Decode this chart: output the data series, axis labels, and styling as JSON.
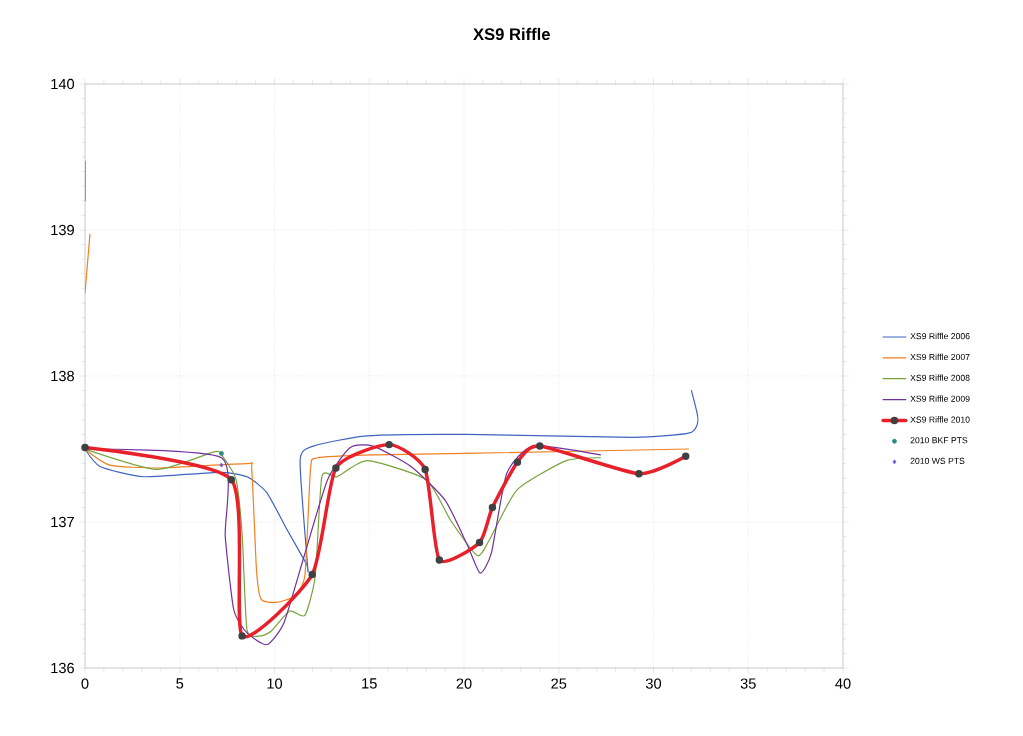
{
  "chart_data": {
    "type": "line",
    "title": "XS9 Riffle",
    "xlim": [
      0,
      40
    ],
    "xticks": [
      0,
      5,
      10,
      15,
      20,
      25,
      30,
      35,
      40
    ],
    "ylim": [
      136,
      140
    ],
    "yticks": [
      136,
      137,
      138,
      139,
      140
    ],
    "grid": true,
    "legend": "right",
    "series": [
      {
        "name": "XS9 Riffle 2006",
        "color": "#3f63c0",
        "marker": "none",
        "x": [
          0,
          0,
          null,
          0,
          0.8,
          3.1,
          7.1,
          8.55,
          9.6,
          10.65,
          11.7,
          11.75,
          11.35,
          12.05,
          14.9,
          20.1,
          28.9,
          31.9,
          32.35,
          32.0
        ],
        "values": [
          139.47,
          139.2,
          null,
          137.5,
          137.38,
          137.31,
          137.34,
          137.31,
          137.2,
          136.95,
          136.71,
          136.69,
          137.42,
          137.52,
          137.59,
          137.6,
          137.58,
          137.61,
          137.7,
          137.9
        ]
      },
      {
        "name": "XS9 Riffle 2007",
        "color": "#f07f20",
        "marker": "none",
        "x": [
          0.26,
          0,
          null,
          0,
          1.3,
          4.0,
          8.55,
          8.8,
          9.05,
          9.3,
          10.1,
          11.0,
          11.6,
          11.9,
          12.25,
          15.4,
          20.1,
          31.85
        ],
        "values": [
          138.97,
          138.57,
          null,
          137.5,
          137.39,
          137.37,
          137.4,
          137.36,
          136.67,
          136.47,
          136.45,
          136.49,
          136.63,
          137.36,
          137.44,
          137.46,
          137.47,
          137.5
        ]
      },
      {
        "name": "XS9 Riffle 2008",
        "color": "#77a33a",
        "marker": "none",
        "x": [
          0,
          3.8,
          6.8,
          7.2,
          7.97,
          8.3,
          8.55,
          9.25,
          9.8,
          10.8,
          11.6,
          12.15,
          12.5,
          13.3,
          14.9,
          18.0,
          19.3,
          20.7,
          21.35,
          22.8,
          25.4,
          27.2
        ],
        "values": [
          137.5,
          137.36,
          137.48,
          137.46,
          137.29,
          136.9,
          136.26,
          136.22,
          136.25,
          136.39,
          136.36,
          136.63,
          137.31,
          137.31,
          137.42,
          137.29,
          137.01,
          136.77,
          136.88,
          137.22,
          137.42,
          137.44
        ]
      },
      {
        "name": "XS9 Riffle 2009",
        "color": "#7030a0",
        "marker": "none",
        "x": [
          0,
          7.2,
          7.4,
          7.85,
          8.55,
          9.6,
          10.5,
          11.55,
          12.8,
          14.0,
          15.2,
          17.2,
          19.0,
          20.15,
          20.85,
          21.45,
          22.25,
          23.65,
          27.2
        ],
        "values": [
          137.5,
          137.44,
          136.9,
          136.4,
          136.24,
          136.16,
          136.31,
          136.76,
          137.29,
          137.51,
          137.52,
          137.38,
          137.15,
          136.85,
          136.65,
          136.79,
          137.33,
          137.52,
          137.46
        ]
      },
      {
        "name": "XS9 Riffle 2010",
        "color": "#e8202a",
        "marker": "circle",
        "x": [
          0,
          7.72,
          8.29,
          11.99,
          13.24,
          16.05,
          17.95,
          18.7,
          20.82,
          21.5,
          22.82,
          24.0,
          29.23,
          31.7
        ],
        "values": [
          137.51,
          137.29,
          136.22,
          136.64,
          137.37,
          137.53,
          137.36,
          136.74,
          136.86,
          137.1,
          137.41,
          137.52,
          137.33,
          137.45
        ]
      },
      {
        "name": "2010 BKF PTS",
        "color": "#2e8b80",
        "type": "scatter",
        "marker": "circle",
        "x": [
          7.2
        ],
        "values": [
          137.47
        ]
      },
      {
        "name": "2010 WS PTS",
        "color": "#6a5acd",
        "type": "scatter",
        "marker": "diamond",
        "x": [
          7.2
        ],
        "values": [
          137.39
        ]
      }
    ]
  }
}
